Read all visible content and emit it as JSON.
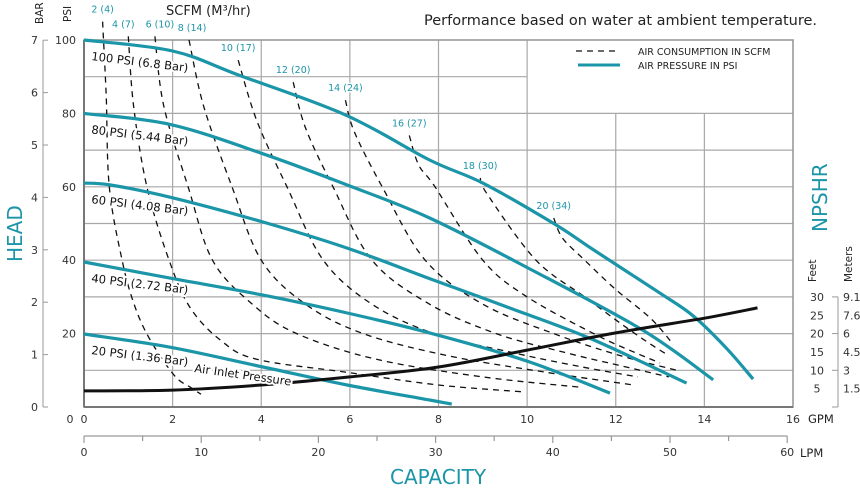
{
  "chart_data": {
    "type": "line",
    "title": "Performance based on water at ambient temperature.",
    "xlabel": "CAPACITY",
    "ylabel": "HEAD",
    "y2label": "NPSHR",
    "x_units": "GPM",
    "x2_units": "LPM",
    "y_units": "PSI",
    "y_alt_units": "BAR",
    "y2_units": "Feet",
    "y2_alt_units": "Meters",
    "scfm_header": "SCFM (M³/hr)",
    "xlim": [
      0,
      16
    ],
    "ylim": [
      0,
      100
    ],
    "grid": true,
    "legend_placement": "top-right",
    "colors": {
      "pressure": "#1b95a8",
      "air": "#111111",
      "grid": "#a8a8a8"
    },
    "legend": [
      {
        "label": "AIR CONSUMPTION IN SCFM",
        "style": "dashed"
      },
      {
        "label": "AIR PRESSURE IN PSI",
        "style": "solid-teal"
      }
    ],
    "x_ticks_gpm": [
      "0",
      "2",
      "4",
      "6",
      "8",
      "10",
      "12",
      "14",
      "16"
    ],
    "x_ticks_lpm": [
      "0",
      "10",
      "20",
      "30",
      "40",
      "50",
      "60"
    ],
    "y_ticks_psi": [
      "20",
      "40",
      "60",
      "80",
      "100"
    ],
    "y_ticks_bar": [
      "0",
      "1",
      "2",
      "3",
      "4",
      "5",
      "6",
      "7"
    ],
    "y2_ticks_feet": [
      "5",
      "10",
      "15",
      "20",
      "25",
      "30"
    ],
    "y2_ticks_meters": [
      "1.5",
      "3",
      "4.5",
      "6",
      "7.6",
      "9.1"
    ],
    "pressure_curves": [
      {
        "name": "100 PSI (6.8 Bar)",
        "points": [
          [
            0,
            100
          ],
          [
            2,
            97
          ],
          [
            3.5,
            90.4
          ],
          [
            5.9,
            79.6
          ],
          [
            7.8,
            67.3
          ],
          [
            9,
            61
          ],
          [
            10.6,
            50
          ],
          [
            11.5,
            42.8
          ],
          [
            13,
            31
          ],
          [
            13.75,
            24.8
          ],
          [
            14.5,
            16
          ],
          [
            15.1,
            7.6
          ]
        ]
      },
      {
        "name": "80 PSI (5.44 Bar)",
        "points": [
          [
            0,
            80
          ],
          [
            1.94,
            77
          ],
          [
            4.04,
            69
          ],
          [
            5.94,
            60.5
          ],
          [
            7.8,
            51.5
          ],
          [
            10,
            38
          ],
          [
            12.6,
            21
          ],
          [
            14.2,
            7.4
          ]
        ]
      },
      {
        "name": "60 PSI (4.08 Bar)",
        "points": [
          [
            0,
            61
          ],
          [
            0.6,
            60.5
          ],
          [
            2,
            57
          ],
          [
            4.04,
            50.4
          ],
          [
            5.94,
            43.3
          ],
          [
            7.8,
            35
          ],
          [
            9.6,
            27
          ],
          [
            11.4,
            18.8
          ],
          [
            13.6,
            6.5
          ]
        ]
      },
      {
        "name": "40 PSI (2.72 Bar)",
        "points": [
          [
            0,
            39.5
          ],
          [
            2,
            35
          ],
          [
            4.04,
            30.5
          ],
          [
            5.94,
            25.6
          ],
          [
            7.8,
            20.2
          ],
          [
            10,
            12.5
          ],
          [
            11.87,
            3.8
          ]
        ]
      },
      {
        "name": "20 PSI (1.36 Bar)",
        "points": [
          [
            0,
            19.9
          ],
          [
            1.94,
            16.3
          ],
          [
            4.04,
            10.9
          ],
          [
            5.94,
            6
          ],
          [
            7.8,
            1.9
          ],
          [
            8.3,
            0.8
          ]
        ]
      }
    ],
    "air_inlet_pressure": {
      "name": "Air Inlet Pressure",
      "points_feet": [
        [
          0,
          4.4
        ],
        [
          2,
          4.6
        ],
        [
          4,
          6
        ],
        [
          6,
          8.2
        ],
        [
          8,
          10.9
        ],
        [
          10,
          15.5
        ],
        [
          12,
          20.2
        ],
        [
          14,
          24.2
        ],
        [
          15.2,
          27
        ]
      ]
    },
    "scfm_curves": [
      {
        "name": "2 (4)",
        "points": [
          [
            0.42,
            105
          ],
          [
            0.5,
            85
          ],
          [
            0.57,
            60
          ],
          [
            0.86,
            40
          ],
          [
            1.13,
            28
          ],
          [
            1.47,
            18.8
          ],
          [
            2.03,
            8.7
          ],
          [
            2.4,
            5.4
          ],
          [
            2.64,
            3.5
          ]
        ]
      },
      {
        "name": "4 (7)",
        "points": [
          [
            1.0,
            101
          ],
          [
            1.12,
            82
          ],
          [
            1.42,
            60
          ],
          [
            1.92,
            40
          ],
          [
            2.4,
            27
          ],
          [
            3.1,
            18
          ],
          [
            3.9,
            13
          ],
          [
            5.9,
            9.5
          ],
          [
            8,
            6
          ],
          [
            9.95,
            4.1
          ]
        ]
      },
      {
        "name": "6 (10)",
        "points": [
          [
            1.6,
            101
          ],
          [
            1.8,
            82
          ],
          [
            2.35,
            60
          ],
          [
            2.9,
            40
          ],
          [
            3.8,
            28
          ],
          [
            4.8,
            20
          ],
          [
            6.6,
            13
          ],
          [
            9,
            8.2
          ],
          [
            11.2,
            5.4
          ]
        ]
      },
      {
        "name": "8 (14)",
        "points": [
          [
            2.37,
            100
          ],
          [
            2.7,
            82
          ],
          [
            3.34,
            60
          ],
          [
            4.0,
            40
          ],
          [
            5.0,
            28
          ],
          [
            6.3,
            20
          ],
          [
            8.2,
            14
          ],
          [
            10.4,
            9.5
          ],
          [
            12.4,
            6
          ]
        ]
      },
      {
        "name": "10 (17)",
        "points": [
          [
            3.48,
            94.5
          ],
          [
            3.9,
            78
          ],
          [
            4.58,
            60
          ],
          [
            5.4,
            40
          ],
          [
            6.5,
            28
          ],
          [
            7.9,
            20
          ],
          [
            9.6,
            15
          ],
          [
            11.2,
            11
          ],
          [
            12.5,
            8.2
          ]
        ]
      },
      {
        "name": "12 (20)",
        "points": [
          [
            4.72,
            88.5
          ],
          [
            5.0,
            76
          ],
          [
            5.62,
            60
          ],
          [
            6.5,
            40
          ],
          [
            7.8,
            28
          ],
          [
            9.3,
            20
          ],
          [
            10.8,
            15
          ],
          [
            12.2,
            11
          ],
          [
            13.2,
            8.2
          ]
        ]
      },
      {
        "name": "14 (24)",
        "points": [
          [
            5.9,
            83.6
          ],
          [
            6.1,
            75
          ],
          [
            6.73,
            60
          ],
          [
            7.7,
            40
          ],
          [
            9.0,
            28
          ],
          [
            10.6,
            20
          ],
          [
            12.1,
            14
          ],
          [
            13.45,
            9.8
          ]
        ]
      },
      {
        "name": "16 (27)",
        "points": [
          [
            7.34,
            74
          ],
          [
            7.55,
            66
          ],
          [
            7.92,
            60
          ],
          [
            9.0,
            40
          ],
          [
            10.0,
            30
          ],
          [
            11.5,
            20
          ],
          [
            12.4,
            15
          ],
          [
            13.0,
            12
          ]
        ]
      },
      {
        "name": "18 (30)",
        "points": [
          [
            8.94,
            62.4
          ],
          [
            9.1,
            58
          ],
          [
            10.2,
            40
          ],
          [
            11.3,
            30
          ],
          [
            12.2,
            22
          ],
          [
            12.8,
            17
          ],
          [
            13.2,
            14
          ]
        ]
      },
      {
        "name": "20 (34)",
        "points": [
          [
            10.6,
            51.5
          ],
          [
            10.8,
            46
          ],
          [
            11.3,
            40
          ],
          [
            12.0,
            32
          ],
          [
            12.8,
            24
          ],
          [
            13.3,
            17
          ]
        ]
      }
    ]
  }
}
